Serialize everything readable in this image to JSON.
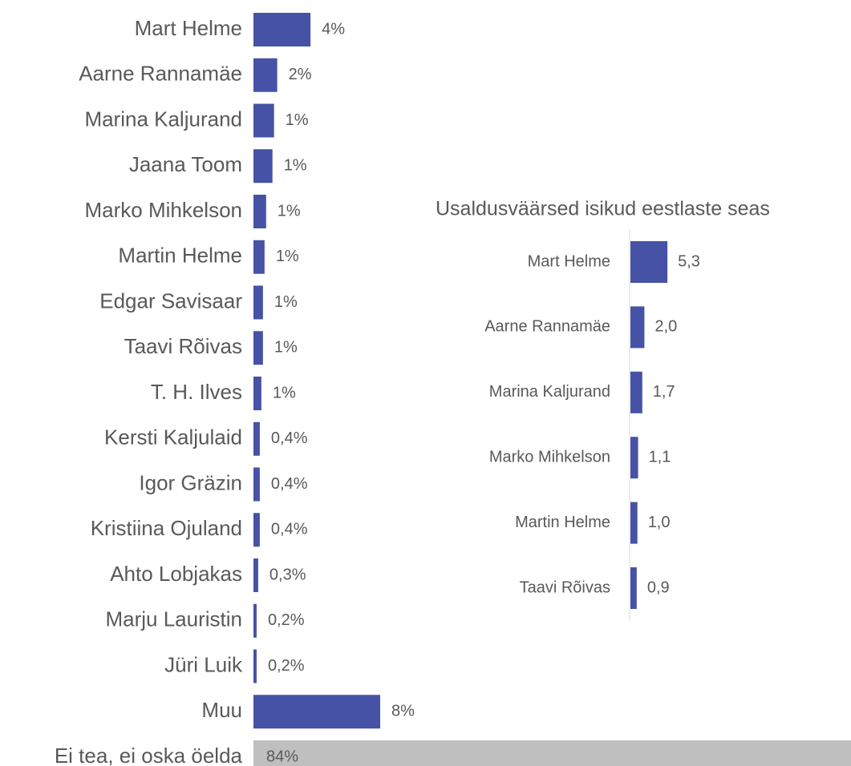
{
  "chart_data": [
    {
      "type": "bar",
      "categories": [
        "Mart Helme",
        "Aarne Rannamäe",
        "Marina Kaljurand",
        "Jaana Toom",
        "Marko Mihkelson",
        "Martin Helme",
        "Edgar Savisaar",
        "Taavi Rõivas",
        "T. H. Ilves",
        "Kersti Kaljulaid",
        "Igor Gräzin",
        "Kristiina Ojuland",
        "Ahto Lobjakas",
        "Marju Lauristin",
        "Jüri Luik",
        "Muu",
        "Ei tea, ei oska öelda"
      ],
      "values": [
        3.6,
        1.5,
        1.3,
        1.2,
        0.8,
        0.7,
        0.6,
        0.6,
        0.5,
        0.4,
        0.4,
        0.4,
        0.3,
        0.2,
        0.2,
        8,
        84
      ],
      "value_labels": [
        "4%",
        "2%",
        "1%",
        "1%",
        "1%",
        "1%",
        "1%",
        "1%",
        "1%",
        "0,4%",
        "0,4%",
        "0,4%",
        "0,3%",
        "0,2%",
        "0,2%",
        "8%",
        "84%"
      ],
      "colors": [
        "#4652a5",
        "#4652a5",
        "#4652a5",
        "#4652a5",
        "#4652a5",
        "#4652a5",
        "#4652a5",
        "#4652a5",
        "#4652a5",
        "#4652a5",
        "#4652a5",
        "#4652a5",
        "#4652a5",
        "#4652a5",
        "#4652a5",
        "#4652a5",
        "#bfbfbf"
      ]
    },
    {
      "type": "bar",
      "title": "Usaldusväärsed isikud eestlaste seas",
      "categories": [
        "Mart Helme",
        "Aarne Rannamäe",
        "Marina Kaljurand",
        "Marko Mihkelson",
        "Martin Helme",
        "Taavi Rõivas"
      ],
      "values": [
        5.3,
        2.0,
        1.7,
        1.1,
        1.0,
        0.9
      ],
      "value_labels": [
        "5,3",
        "2,0",
        "1,7",
        "1,1",
        "1,0",
        "0,9"
      ],
      "color": "#4652a5"
    }
  ]
}
